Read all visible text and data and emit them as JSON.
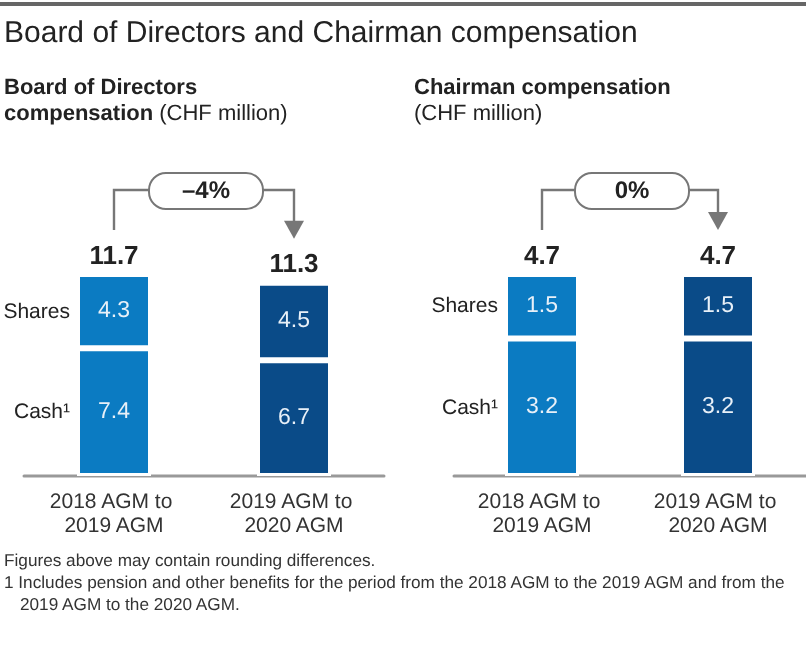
{
  "chart_data": [
    {
      "type": "bar",
      "title": "Board of Directors and Chairman compensation",
      "subtitle": "Board of Directors compensation (CHF million)",
      "categories": [
        "2018 AGM to 2019 AGM",
        "2019 AGM to 2020 AGM"
      ],
      "series": [
        {
          "name": "Cash¹",
          "colors": [
            "#0b7bc2",
            "#0a4b88"
          ],
          "values": [
            7.4,
            6.7
          ]
        },
        {
          "name": "Shares",
          "colors": [
            "#0b7bc2",
            "#0a4b88"
          ],
          "values": [
            4.3,
            4.5
          ]
        }
      ],
      "stacked": true,
      "data_labels": true,
      "totals": [
        "11.7",
        "11.3"
      ],
      "tick_labels": "x",
      "annotations": [
        "–4%",
        "Figures above may contain rounding differences.",
        "1 Includes pension and other benefits for the period from the 2018 AGM to the 2019 AGM and from the 2019 AGM to the 2020 AGM."
      ]
    },
    {
      "type": "bar",
      "subtitle": "Chairman compensation (CHF million)",
      "categories": [
        "2018 AGM to 2019 AGM",
        "2019 AGM to 2020 AGM"
      ],
      "series": [
        {
          "name": "Cash¹",
          "colors": [
            "#0b7bc2",
            "#0a4b88"
          ],
          "values": [
            3.2,
            3.2
          ]
        },
        {
          "name": "Shares",
          "colors": [
            "#0b7bc2",
            "#0a4b88"
          ],
          "values": [
            1.5,
            1.5
          ]
        }
      ],
      "stacked": true,
      "data_labels": true,
      "totals": [
        "4.7",
        "4.7"
      ],
      "tick_labels": "x",
      "annotations": [
        "0%"
      ]
    }
  ]
}
